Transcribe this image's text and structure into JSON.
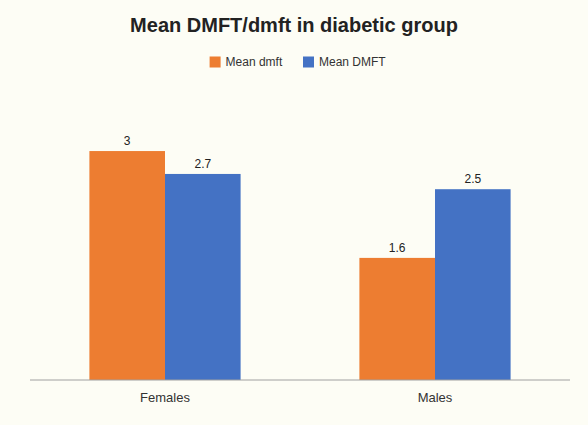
{
  "chart_data": {
    "type": "bar",
    "title": "Mean DMFT/dmft in diabetic group",
    "categories": [
      "Females",
      "Males"
    ],
    "series": [
      {
        "name": "Mean dmft",
        "color": "#ED7D31",
        "values": [
          3.0,
          1.6
        ]
      },
      {
        "name": "Mean DMFT",
        "color": "#4472C4",
        "values": [
          2.7,
          2.5
        ]
      }
    ],
    "ylim": [
      0,
      3.8
    ],
    "grid": false,
    "legend": "top",
    "data_labels": true,
    "tick_labels": "x"
  }
}
